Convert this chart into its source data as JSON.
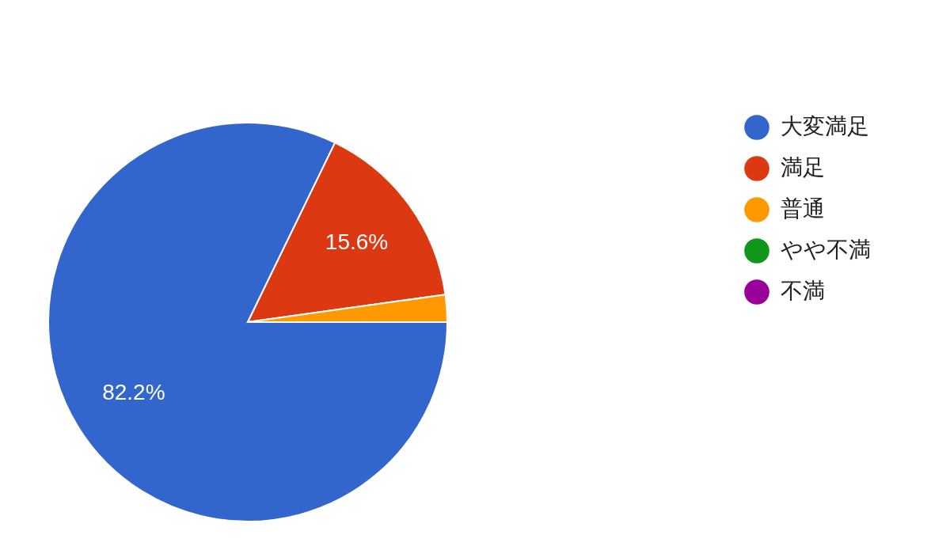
{
  "chart_data": {
    "type": "pie",
    "categories": [
      "大変満足",
      "満足",
      "普通",
      "やや不満",
      "不満"
    ],
    "values": [
      82.2,
      15.6,
      2.2,
      0,
      0
    ],
    "colors": [
      "#3366cc",
      "#dc3912",
      "#ff9900",
      "#109618",
      "#990099"
    ],
    "value_labels": [
      "82.2%",
      "15.6%",
      null,
      null,
      null
    ],
    "legend": "right"
  }
}
